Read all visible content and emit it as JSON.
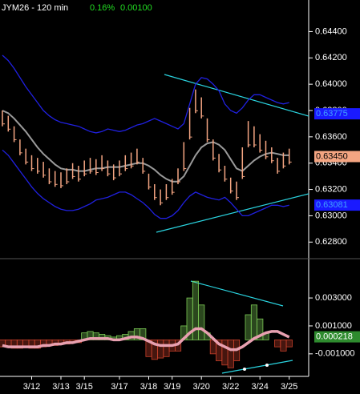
{
  "chart_data": [
    {
      "type": "range-bar",
      "title": "JYM26 - 120 min",
      "change_pct": {
        "value": 0.16,
        "label": "0.16%"
      },
      "change": {
        "value": 0.001,
        "label": "0.00100"
      },
      "color": "#f4a582",
      "high": [
        0.638,
        0.6376,
        0.6368,
        0.6358,
        0.6351,
        0.6346,
        0.6344,
        0.6341,
        0.6336,
        0.6334,
        0.6333,
        0.6336,
        0.634,
        0.6338,
        0.6342,
        0.6344,
        0.6343,
        0.6346,
        0.6342,
        0.6339,
        0.6342,
        0.6346,
        0.6348,
        0.6351,
        0.6344,
        0.6332,
        0.6324,
        0.632,
        0.6324,
        0.6328,
        0.6336,
        0.6356,
        0.6382,
        0.6396,
        0.639,
        0.6374,
        0.6358,
        0.6347,
        0.6338,
        0.6329,
        0.6326,
        0.6352,
        0.6372,
        0.6368,
        0.6362,
        0.6357,
        0.6352,
        0.6344,
        0.6348,
        0.6351
      ],
      "low": [
        0.6368,
        0.6364,
        0.6356,
        0.6346,
        0.6339,
        0.6334,
        0.6332,
        0.6329,
        0.6324,
        0.6322,
        0.6321,
        0.6324,
        0.6328,
        0.6326,
        0.633,
        0.6332,
        0.6331,
        0.6334,
        0.633,
        0.6327,
        0.633,
        0.6334,
        0.6336,
        0.6339,
        0.6332,
        0.632,
        0.6312,
        0.6308,
        0.6312,
        0.6316,
        0.6324,
        0.6334,
        0.6358,
        0.6378,
        0.6374,
        0.6356,
        0.6342,
        0.6333,
        0.6326,
        0.6317,
        0.6312,
        0.6328,
        0.6352,
        0.6352,
        0.6348,
        0.6343,
        0.634,
        0.6332,
        0.6336,
        0.6339
      ],
      "lines": [
        {
          "color": "#2020e0",
          "values": [
            0.6422,
            0.6418,
            0.6412,
            0.6405,
            0.6398,
            0.6392,
            0.6386,
            0.638,
            0.6376,
            0.6373,
            0.6371,
            0.637,
            0.6369,
            0.6368,
            0.6366,
            0.6364,
            0.6363,
            0.6364,
            0.6366,
            0.6365,
            0.6364,
            0.6365,
            0.6367,
            0.6369,
            0.637,
            0.6372,
            0.6374,
            0.6372,
            0.637,
            0.6368,
            0.6366,
            0.637,
            0.6385,
            0.64,
            0.6405,
            0.6404,
            0.64,
            0.6395,
            0.6385,
            0.638,
            0.6378,
            0.6382,
            0.6388,
            0.6392,
            0.6392,
            0.639,
            0.6388,
            0.6386,
            0.6385,
            0.6386
          ]
        },
        {
          "color": "#9a9a9a",
          "values": [
            0.638,
            0.6378,
            0.6374,
            0.6369,
            0.6364,
            0.6358,
            0.6352,
            0.6347,
            0.6343,
            0.6339,
            0.6336,
            0.6335,
            0.6335,
            0.6334,
            0.6334,
            0.6335,
            0.6336,
            0.6336,
            0.6337,
            0.6337,
            0.6337,
            0.6338,
            0.6339,
            0.634,
            0.634,
            0.6338,
            0.6335,
            0.6331,
            0.6328,
            0.6326,
            0.6326,
            0.633,
            0.6338,
            0.6346,
            0.6352,
            0.6355,
            0.6356,
            0.6354,
            0.635,
            0.6343,
            0.6336,
            0.6334,
            0.6338,
            0.6342,
            0.6345,
            0.6347,
            0.6348,
            0.6347,
            0.6346,
            0.6346
          ]
        },
        {
          "color": "#2020e0",
          "values": [
            0.635,
            0.6346,
            0.634,
            0.6334,
            0.6328,
            0.6322,
            0.6317,
            0.6313,
            0.631,
            0.6307,
            0.6305,
            0.6304,
            0.6304,
            0.6305,
            0.6307,
            0.6309,
            0.6312,
            0.6313,
            0.6314,
            0.6316,
            0.6318,
            0.6318,
            0.6316,
            0.6313,
            0.631,
            0.6306,
            0.6301,
            0.6298,
            0.6298,
            0.63,
            0.6304,
            0.631,
            0.6315,
            0.6318,
            0.6316,
            0.6314,
            0.6313,
            0.6312,
            0.6314,
            0.631,
            0.6305,
            0.63,
            0.63,
            0.6302,
            0.6304,
            0.6306,
            0.6308,
            0.6308,
            0.6307,
            0.6308
          ]
        }
      ],
      "price_labels": [
        {
          "value": 0.63775,
          "label": "0.63775",
          "color": "#1a1aff",
          "text_color": "#40a0ff"
        },
        {
          "value": 0.6345,
          "label": "0.63450",
          "color": "#f4a582",
          "text_color": "#000000"
        },
        {
          "value": 0.63081,
          "label": "0.63081",
          "color": "#1a1aff",
          "text_color": "#40a0ff"
        }
      ],
      "ylim": [
        0.6268,
        0.6464
      ],
      "yticks": [
        {
          "value": 0.628,
          "label": "0.62800"
        },
        {
          "value": 0.63,
          "label": "0.63000"
        },
        {
          "value": 0.632,
          "label": "0.63200"
        },
        {
          "value": 0.634,
          "label": "0.63400"
        },
        {
          "value": 0.636,
          "label": "0.63600"
        },
        {
          "value": 0.638,
          "label": "0.63800"
        },
        {
          "value": 0.64,
          "label": "0.64000"
        },
        {
          "value": 0.642,
          "label": "0.64200"
        },
        {
          "value": 0.644,
          "label": "0.64400"
        }
      ]
    },
    {
      "type": "macd",
      "categories": [
        null,
        null,
        null,
        null,
        null,
        "3/12",
        null,
        null,
        null,
        null,
        "3/13",
        null,
        null,
        null,
        "3/15",
        null,
        null,
        null,
        null,
        null,
        "3/17",
        null,
        null,
        null,
        null,
        "3/18",
        null,
        null,
        null,
        "3/19",
        null,
        null,
        null,
        null,
        "3/20",
        null,
        null,
        null,
        null,
        "3/22",
        null,
        null,
        null,
        null,
        "3/24",
        null,
        null,
        null,
        null,
        "3/25"
      ],
      "values": [
        -0.0005,
        -0.0005,
        -0.0006,
        -0.0006,
        -0.0005,
        -0.0006,
        -0.0006,
        -0.0005,
        -0.0004,
        -0.0004,
        -0.0003,
        -0.0003,
        -0.0002,
        -0.0002,
        0.0005,
        0.0006,
        0.0005,
        0.0004,
        0.0003,
        0.0002,
        0.0003,
        0.0004,
        0.0006,
        0.0008,
        0.0008,
        -0.0012,
        -0.0014,
        -0.0013,
        -0.0012,
        -0.0008,
        -0.0008,
        0.001,
        0.003,
        0.0042,
        0.0025,
        0.0005,
        -0.001,
        -0.0015,
        -0.0018,
        -0.002,
        -0.0015,
        0.0,
        0.0018,
        0.0025,
        0.0015,
        0.0005,
        0.0,
        -0.0005,
        -0.0008,
        -0.0005
      ],
      "positive_color": "#7ccb55",
      "negative_color": "#c8402a",
      "line": {
        "color": "#e8a0b0",
        "values": [
          -0.0004,
          -0.0005,
          -0.0005,
          -0.0005,
          -0.0005,
          -0.0005,
          -0.0005,
          -0.0004,
          -0.0004,
          -0.0003,
          -0.0003,
          -0.0002,
          -0.0002,
          -0.0001,
          0.0,
          0.0001,
          0.0001,
          0.0001,
          0.0001,
          0.0,
          0.0,
          0.0001,
          0.0002,
          0.0002,
          0.0001,
          -0.0001,
          -0.0003,
          -0.0004,
          -0.0004,
          -0.0004,
          -0.0003,
          0.0001,
          0.0005,
          0.0008,
          0.0008,
          0.0005,
          0.0001,
          -0.0003,
          -0.0005,
          -0.0007,
          -0.0007,
          -0.0005,
          -0.0002,
          0.0001,
          0.0003,
          0.0005,
          0.0006,
          0.0006,
          0.0004,
          0.0002
        ]
      },
      "last_label": {
        "value": 0.000218,
        "label": "0.000218",
        "color": "#2e8b2e",
        "text_color": "#ffffff"
      },
      "ylim": [
        -0.0025,
        0.0057
      ],
      "yticks": [
        {
          "value": 0.003,
          "label": "0.003000"
        },
        {
          "value": 0.001,
          "label": "0.001000"
        },
        {
          "value": -0.001,
          "label": "-0.001000"
        }
      ]
    }
  ]
}
